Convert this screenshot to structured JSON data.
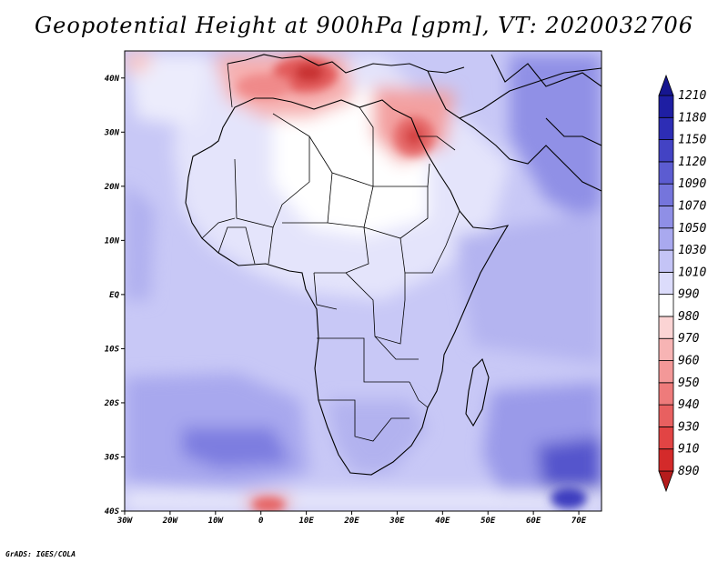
{
  "title": "Geopotential Height at 900hPa [gpm], VT: 2020032706",
  "footer": "GrADS: IGES/COLA",
  "map": {
    "projection": "lat-lon",
    "lon_range": [
      -30,
      75
    ],
    "lat_range": [
      -40,
      45
    ],
    "lon_ticks": [
      "30W",
      "20W",
      "10W",
      "0",
      "10E",
      "20E",
      "30E",
      "40E",
      "50E",
      "60E",
      "70E"
    ],
    "lat_ticks": [
      "40S",
      "30S",
      "20S",
      "10S",
      "EQ",
      "10N",
      "20N",
      "30N",
      "40N"
    ]
  },
  "colorbar": {
    "levels": [
      "890",
      "910",
      "930",
      "940",
      "950",
      "960",
      "970",
      "980",
      "990",
      "1010",
      "1030",
      "1050",
      "1070",
      "1090",
      "1120",
      "1150",
      "1180",
      "1210"
    ],
    "colors": [
      "#b51c1c",
      "#d42a2a",
      "#e24444",
      "#e86060",
      "#ee7b7b",
      "#f39898",
      "#f7b4b4",
      "#fbd4d4",
      "#ffffff",
      "#dcdcfb",
      "#c4c4f6",
      "#a9a9ef",
      "#8f8fe6",
      "#7575dc",
      "#5c5cd1",
      "#4343c4",
      "#2d2db5",
      "#1e1ea3",
      "#161690"
    ]
  }
}
